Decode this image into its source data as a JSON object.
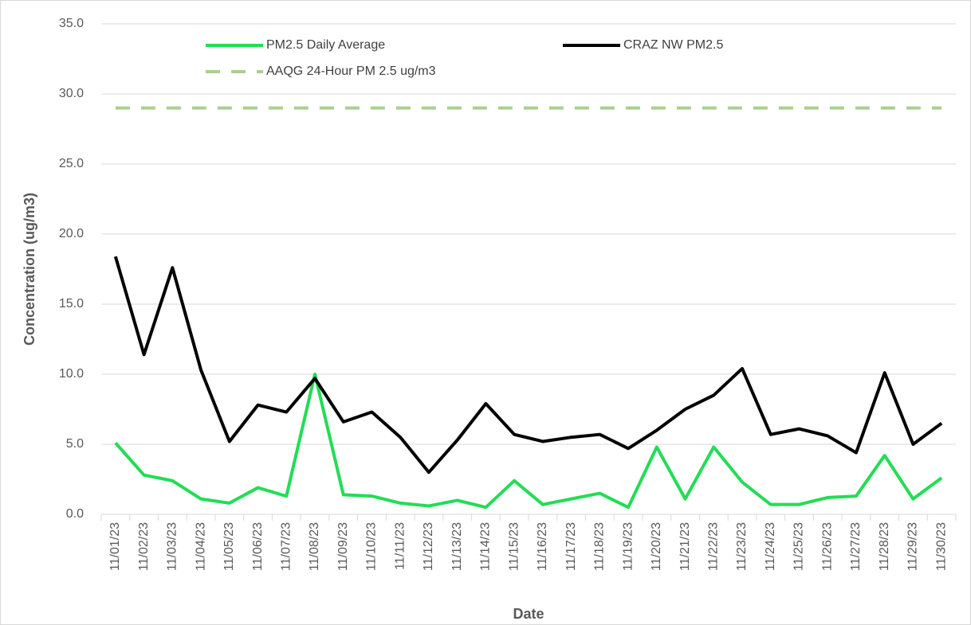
{
  "chart_data": {
    "type": "line",
    "x_label": "Date",
    "y_label": "Concentration (ug/m3)",
    "categories": [
      "11/01/23",
      "11/02/23",
      "11/03/23",
      "11/04/23",
      "11/05/23",
      "11/06/23",
      "11/07/23",
      "11/08/23",
      "11/09/23",
      "11/10/23",
      "11/11/23",
      "11/12/23",
      "11/13/23",
      "11/14/23",
      "11/15/23",
      "11/16/23",
      "11/17/23",
      "11/18/23",
      "11/19/23",
      "11/20/23",
      "11/21/23",
      "11/22/23",
      "11/23/23",
      "11/24/23",
      "11/25/23",
      "11/26/23",
      "11/27/23",
      "11/28/23",
      "11/29/23",
      "11/30/23"
    ],
    "series": [
      {
        "name": "PM2.5 Daily Average",
        "color": "#22dd55",
        "line_style": "solid",
        "values": [
          5.1,
          2.8,
          2.4,
          1.1,
          0.8,
          1.9,
          1.3,
          10.0,
          1.4,
          1.3,
          0.8,
          0.6,
          1.0,
          0.5,
          2.4,
          0.7,
          1.1,
          1.5,
          0.5,
          4.8,
          1.1,
          4.8,
          2.3,
          0.7,
          0.7,
          1.2,
          1.3,
          4.2,
          1.1,
          2.6
        ]
      },
      {
        "name": "CRAZ NW PM2.5",
        "color": "#000000",
        "line_style": "solid",
        "values": [
          18.4,
          11.4,
          17.6,
          10.3,
          5.2,
          7.8,
          7.3,
          9.7,
          6.6,
          7.3,
          5.5,
          3.0,
          5.3,
          7.9,
          5.7,
          5.2,
          5.5,
          5.7,
          4.7,
          6.0,
          7.5,
          8.5,
          10.4,
          5.7,
          6.1,
          5.6,
          4.4,
          10.1,
          5.0,
          6.5
        ]
      },
      {
        "name": "AAQG 24-Hour PM 2.5 ug/m3",
        "color": "#a9d18e",
        "line_style": "dashed",
        "values": [
          29,
          29,
          29,
          29,
          29,
          29,
          29,
          29,
          29,
          29,
          29,
          29,
          29,
          29,
          29,
          29,
          29,
          29,
          29,
          29,
          29,
          29,
          29,
          29,
          29,
          29,
          29,
          29,
          29,
          29
        ]
      }
    ],
    "ylim": [
      0,
      35
    ],
    "yticks": [
      {
        "value": 0,
        "label": "0.0"
      },
      {
        "value": 5,
        "label": "5.0"
      },
      {
        "value": 10,
        "label": "10.0"
      },
      {
        "value": 15,
        "label": "15.0"
      },
      {
        "value": 20,
        "label": "20.0"
      },
      {
        "value": 25,
        "label": "25.0"
      },
      {
        "value": 30,
        "label": "30.0"
      },
      {
        "value": 35,
        "label": "35.0"
      }
    ],
    "grid": true,
    "legend": "top"
  }
}
